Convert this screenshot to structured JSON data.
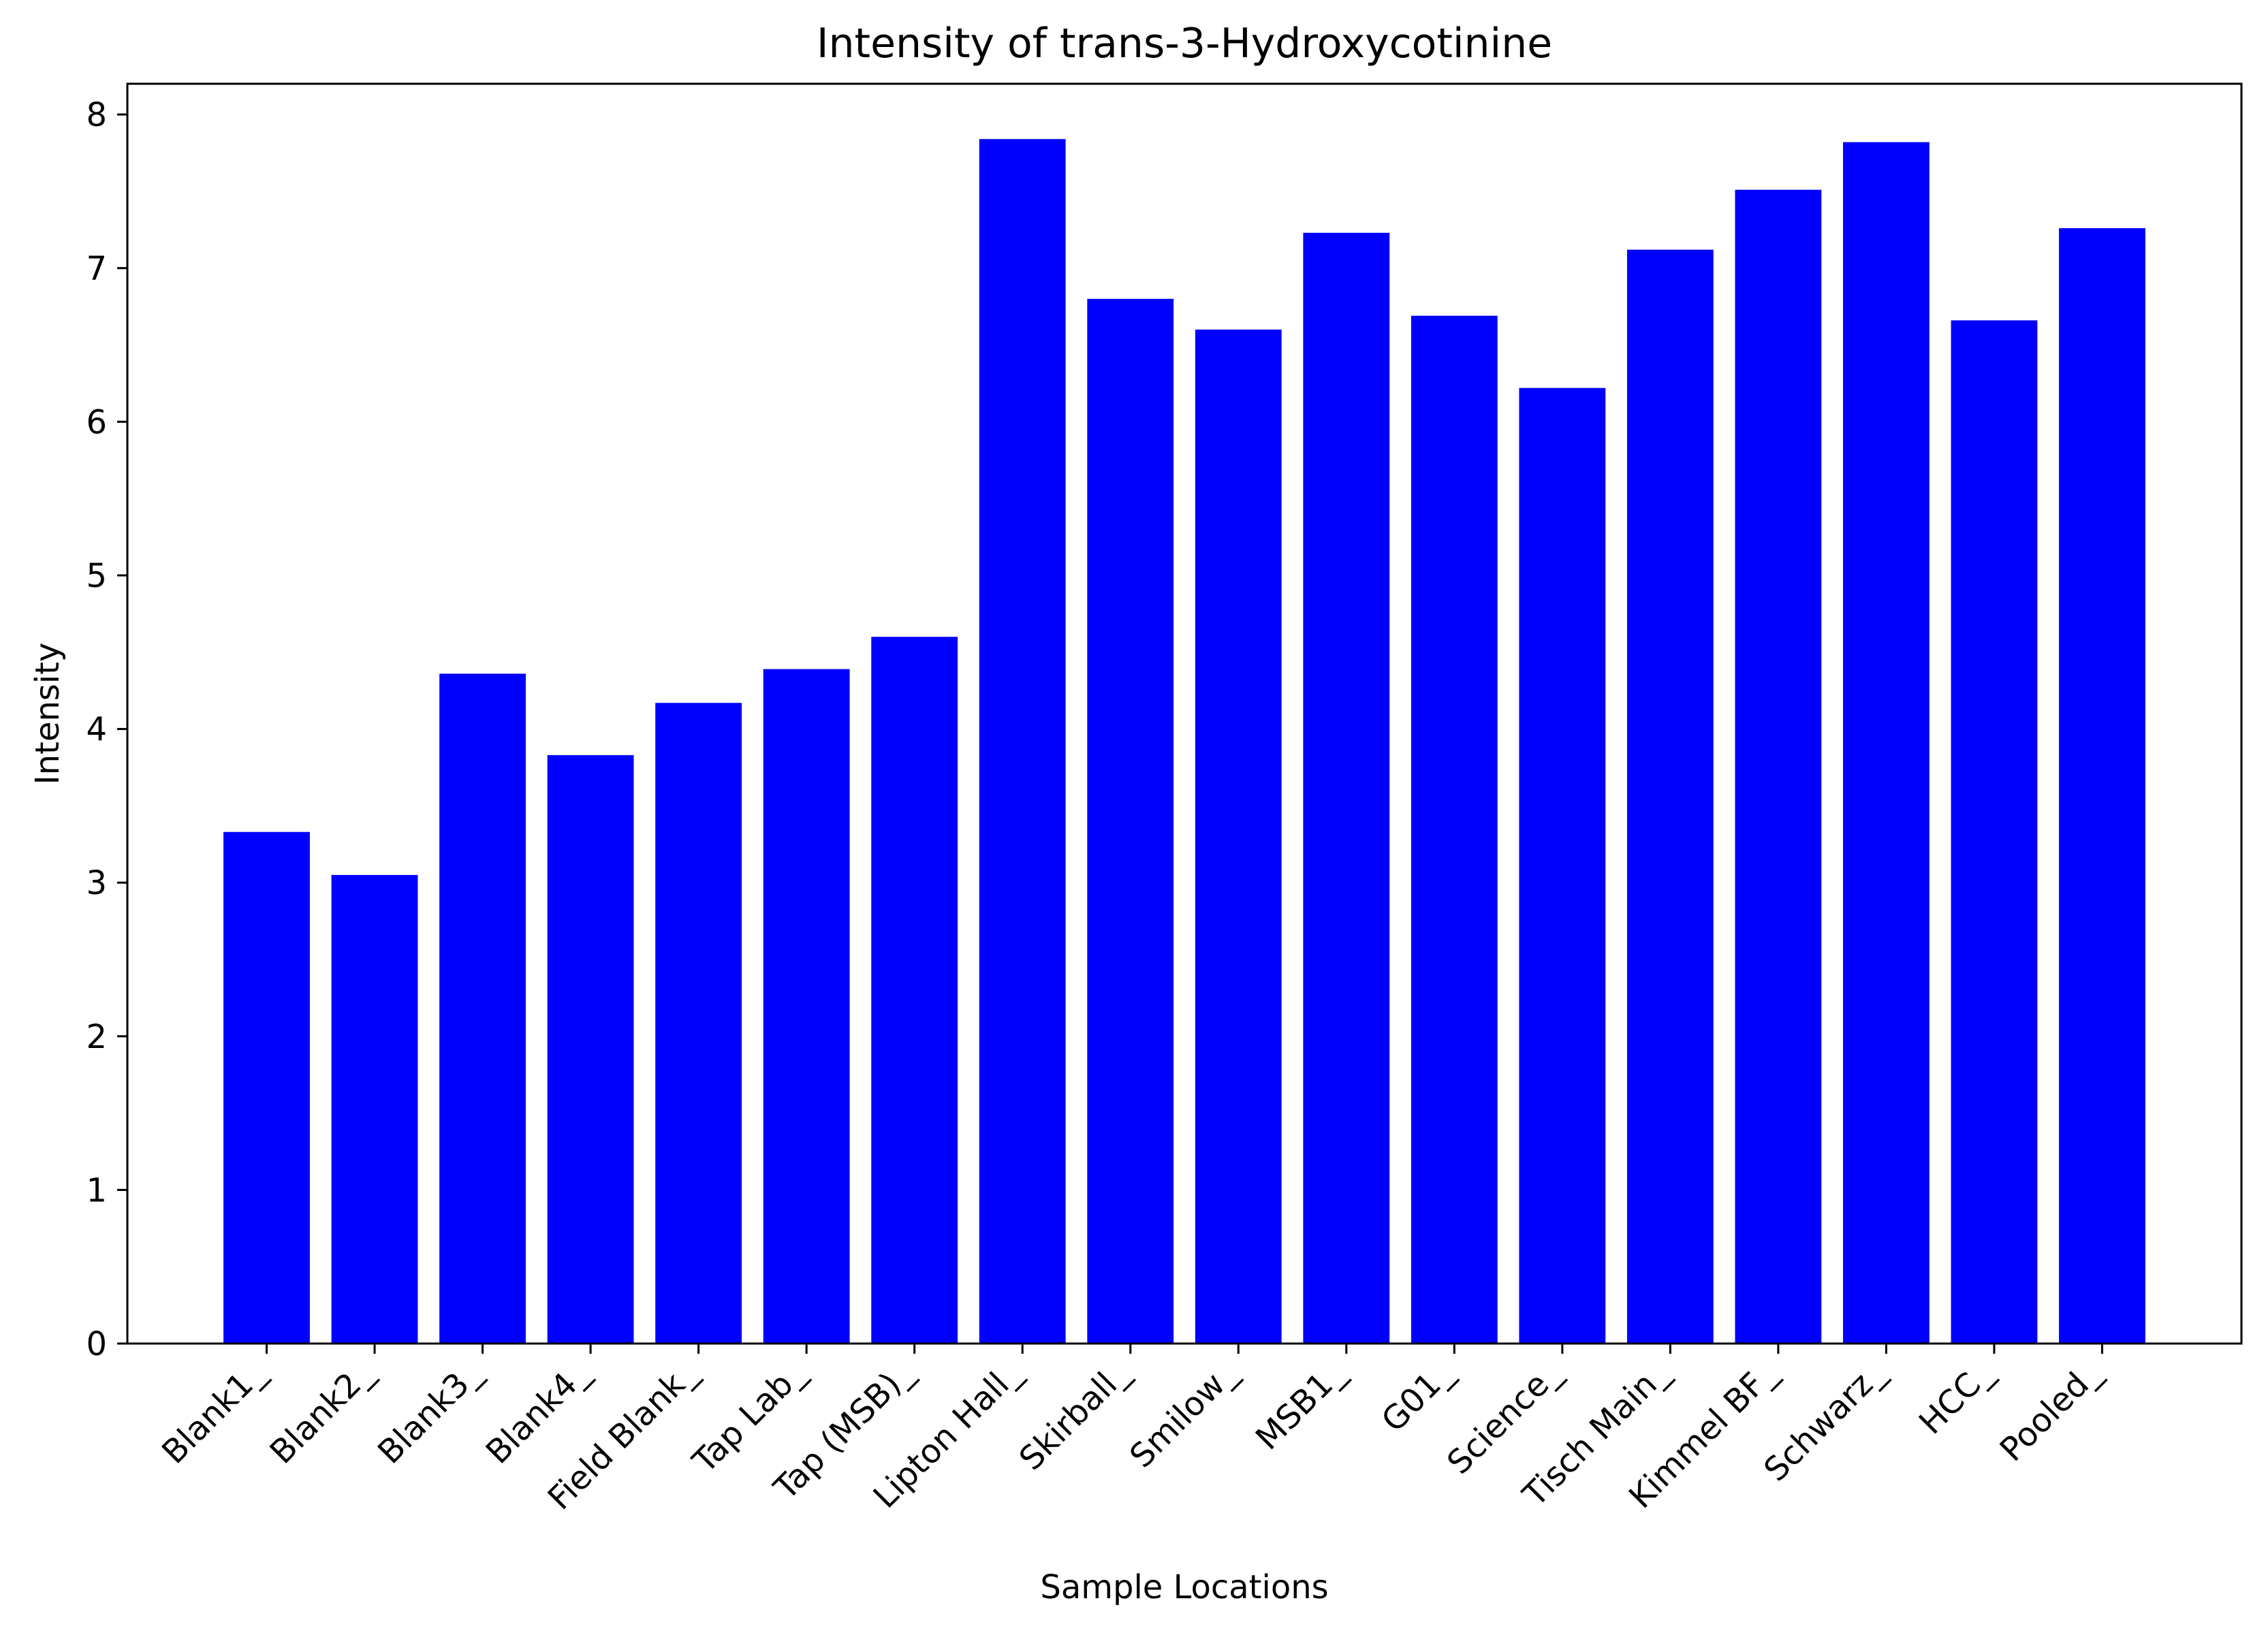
{
  "chart_data": {
    "type": "bar",
    "title": "Intensity of trans-3-Hydroxycotinine",
    "xlabel": "Sample Locations",
    "ylabel": "Intensity",
    "categories": [
      "Blank1_",
      "Blank2_",
      "Blank3_",
      "Blank4_",
      "Field Blank_",
      "Tap Lab_",
      "Tap (MSB)_",
      "Lipton Hall_",
      "Skirball_",
      "Smilow_",
      "MSB1_",
      "G01_",
      "Science_",
      "Tisch Main_",
      "Kimmel BF_",
      "Schwarz_",
      "HCC_",
      "Pooled_"
    ],
    "values": [
      3.33,
      3.05,
      4.36,
      3.83,
      4.17,
      4.39,
      4.6,
      7.84,
      6.8,
      6.6,
      7.23,
      6.69,
      6.22,
      7.12,
      7.51,
      7.82,
      6.66,
      7.26
    ],
    "ylim": [
      0,
      8.2
    ],
    "yticks": [
      0,
      1,
      2,
      3,
      4,
      5,
      6,
      7,
      8
    ],
    "bar_color": "#0000ff",
    "grid": false
  }
}
